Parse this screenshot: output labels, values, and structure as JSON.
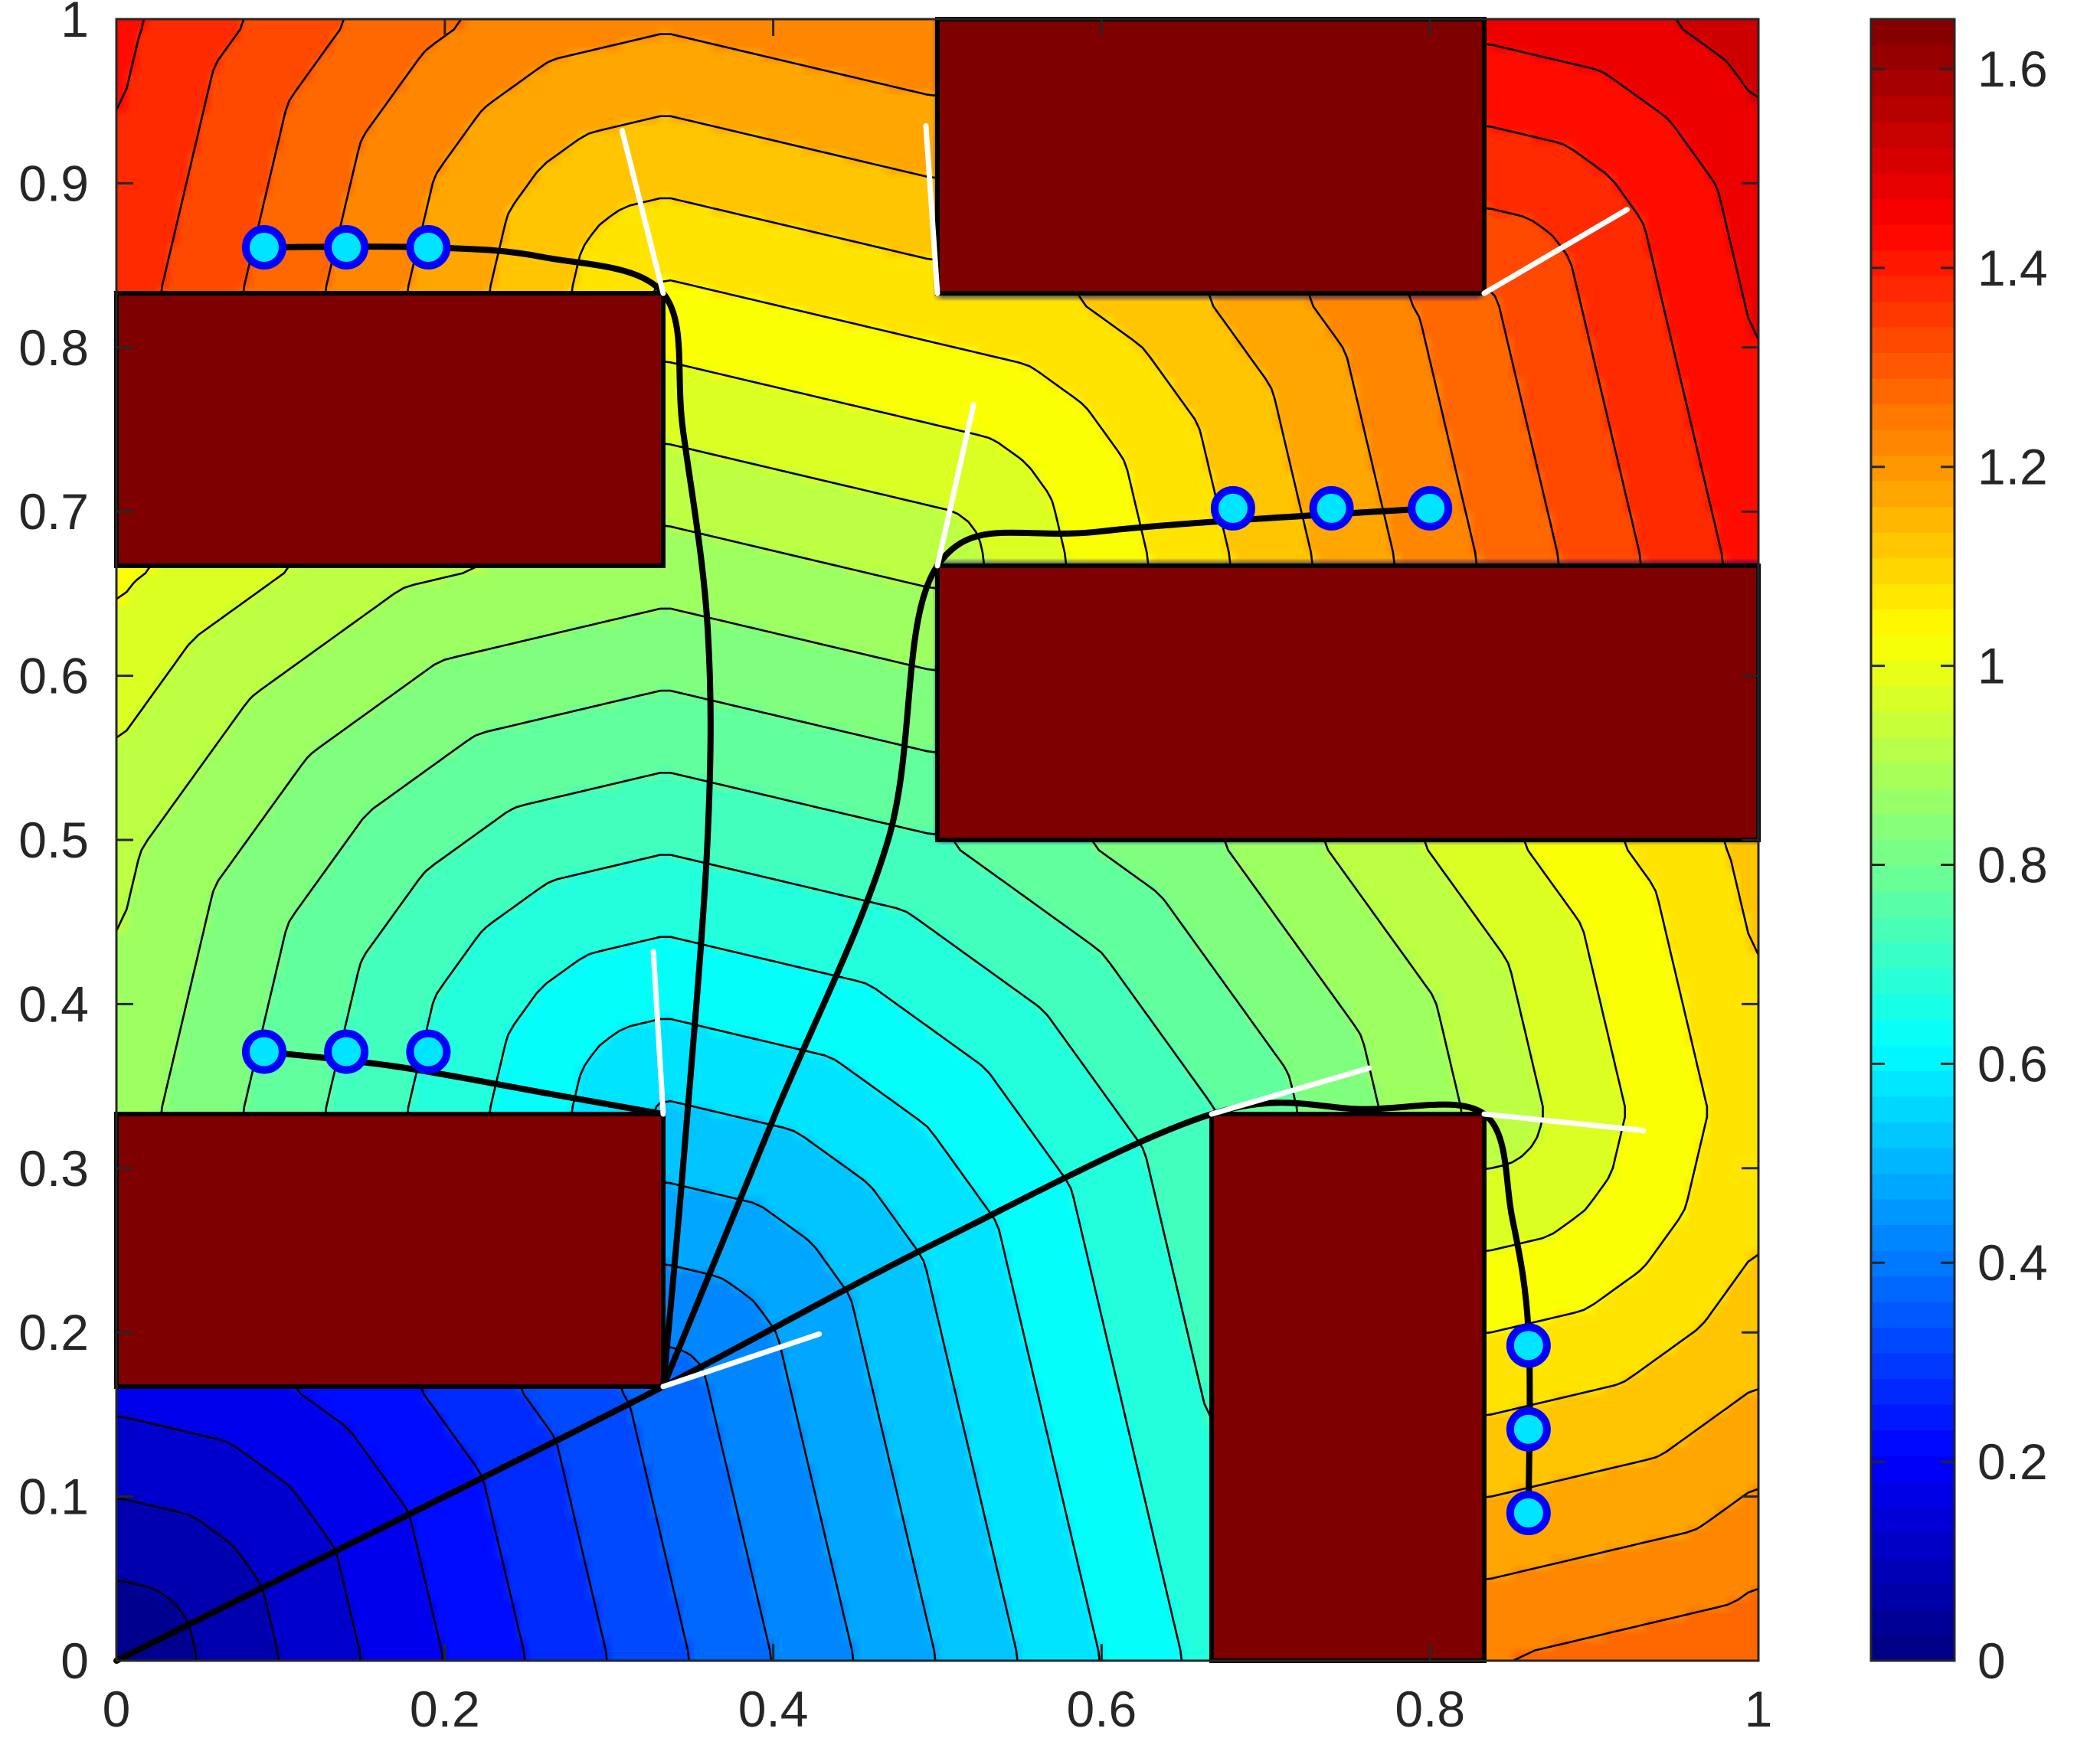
{
  "chart_data": {
    "type": "heatmap",
    "title": "",
    "xlabel": "",
    "ylabel": "",
    "xlim": [
      0,
      1
    ],
    "ylim": [
      0,
      1
    ],
    "x_ticks": [
      "0",
      "0.2",
      "0.4",
      "0.6",
      "0.8",
      "1"
    ],
    "y_ticks": [
      "0",
      "0.1",
      "0.2",
      "0.3",
      "0.4",
      "0.5",
      "0.6",
      "0.7",
      "0.8",
      "0.9",
      "1"
    ],
    "colorbar": {
      "range": [
        0,
        1.65
      ],
      "colormap": "jet",
      "ticks": [
        "0",
        "0.2",
        "0.4",
        "0.6",
        "0.8",
        "1",
        "1.2",
        "1.4",
        "1.6"
      ]
    },
    "field": {
      "source": [
        0,
        0
      ],
      "description": "distance-like field, increasing from the source at the origin",
      "contour_step": 0.05
    },
    "obstacles": [
      {
        "x": [
          0.0,
          0.333
        ],
        "y": [
          0.667,
          0.833
        ]
      },
      {
        "x": [
          0.5,
          0.833
        ],
        "y": [
          0.833,
          1.0
        ]
      },
      {
        "x": [
          0.5,
          1.0
        ],
        "y": [
          0.5,
          0.667
        ]
      },
      {
        "x": [
          0.0,
          0.333
        ],
        "y": [
          0.167,
          0.333
        ]
      },
      {
        "x": [
          0.667,
          0.833
        ],
        "y": [
          0.0,
          0.333
        ]
      }
    ],
    "obstacle_color": "#7f0000",
    "paths": [
      {
        "points": [
          [
            0,
            0
          ],
          [
            0.16,
            0.08
          ],
          [
            0.333,
            0.167
          ],
          [
            0.5,
            0.255
          ],
          [
            0.667,
            0.333
          ],
          [
            0.76,
            0.336
          ],
          [
            0.833,
            0.333
          ],
          [
            0.85,
            0.27
          ],
          [
            0.86,
            0.2
          ],
          [
            0.86,
            0.09
          ]
        ]
      },
      {
        "points": [
          [
            0.333,
            0.167
          ],
          [
            0.345,
            0.3
          ],
          [
            0.36,
            0.5
          ],
          [
            0.36,
            0.63
          ],
          [
            0.345,
            0.75
          ],
          [
            0.333,
            0.833
          ],
          [
            0.26,
            0.855
          ],
          [
            0.19,
            0.861
          ],
          [
            0.09,
            0.861
          ]
        ]
      },
      {
        "points": [
          [
            0.333,
            0.167
          ],
          [
            0.4,
            0.33
          ],
          [
            0.47,
            0.5
          ],
          [
            0.5,
            0.667
          ],
          [
            0.6,
            0.688
          ],
          [
            0.8,
            0.702
          ]
        ]
      },
      {
        "points": [
          [
            0.333,
            0.333
          ],
          [
            0.26,
            0.346
          ],
          [
            0.17,
            0.362
          ],
          [
            0.09,
            0.371
          ]
        ]
      }
    ],
    "markers": [
      {
        "x": 0.09,
        "y": 0.861
      },
      {
        "x": 0.14,
        "y": 0.861
      },
      {
        "x": 0.19,
        "y": 0.861
      },
      {
        "x": 0.68,
        "y": 0.702
      },
      {
        "x": 0.74,
        "y": 0.702
      },
      {
        "x": 0.8,
        "y": 0.702
      },
      {
        "x": 0.09,
        "y": 0.371
      },
      {
        "x": 0.14,
        "y": 0.371
      },
      {
        "x": 0.19,
        "y": 0.371
      },
      {
        "x": 0.86,
        "y": 0.192
      },
      {
        "x": 0.86,
        "y": 0.141
      },
      {
        "x": 0.86,
        "y": 0.09
      }
    ],
    "marker_fill": "#00e5ff",
    "marker_edge": "#0000ff",
    "white_segments": [
      [
        [
          0.333,
          0.833
        ],
        [
          0.308,
          0.932
        ]
      ],
      [
        [
          0.5,
          0.833
        ],
        [
          0.493,
          0.935
        ]
      ],
      [
        [
          0.833,
          0.833
        ],
        [
          0.92,
          0.884
        ]
      ],
      [
        [
          0.5,
          0.667
        ],
        [
          0.522,
          0.765
        ]
      ],
      [
        [
          0.333,
          0.333
        ],
        [
          0.327,
          0.432
        ]
      ],
      [
        [
          0.333,
          0.167
        ],
        [
          0.428,
          0.199
        ]
      ],
      [
        [
          0.667,
          0.333
        ],
        [
          0.763,
          0.361
        ]
      ],
      [
        [
          0.833,
          0.333
        ],
        [
          0.93,
          0.323
        ]
      ]
    ]
  }
}
